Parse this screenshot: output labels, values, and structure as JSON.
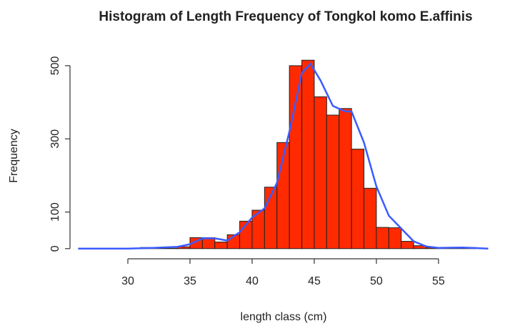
{
  "chart_data": {
    "type": "histogram",
    "title": "Histogram of Length Frequency of Tongkol komo E.affinis",
    "x_label": "length class (cm)",
    "y_label": "Frequency",
    "bins": [
      31,
      32,
      33,
      34,
      35,
      36,
      37,
      38,
      39,
      40,
      41,
      42,
      43,
      44,
      45,
      46,
      47,
      48,
      49,
      50,
      51,
      52,
      53,
      54,
      55,
      56,
      57,
      58
    ],
    "counts": [
      3,
      2,
      1,
      5,
      30,
      30,
      18,
      38,
      75,
      105,
      168,
      290,
      500,
      515,
      415,
      365,
      383,
      272,
      165,
      58,
      57,
      20,
      8,
      3,
      1,
      3,
      3
    ],
    "color": "#ff2a00",
    "density": {
      "color": "#3b5bff",
      "x": [
        26,
        30,
        32,
        34,
        35,
        36,
        37,
        38,
        39,
        40,
        41,
        42,
        43,
        44,
        44.7,
        45.5,
        46.5,
        47.5,
        48,
        49,
        50,
        51,
        52,
        53,
        54,
        55,
        57,
        59
      ],
      "y": [
        0,
        0,
        2,
        5,
        12,
        28,
        28,
        22,
        45,
        85,
        110,
        180,
        320,
        480,
        505,
        460,
        390,
        375,
        375,
        290,
        170,
        90,
        55,
        20,
        6,
        2,
        3,
        0
      ]
    },
    "xlim": [
      25.46,
      59.66
    ],
    "ylim": [
      -20,
      533
    ],
    "xticks": [
      30,
      35,
      40,
      45,
      50,
      55
    ],
    "yticks": [
      0,
      100,
      300,
      500
    ]
  }
}
